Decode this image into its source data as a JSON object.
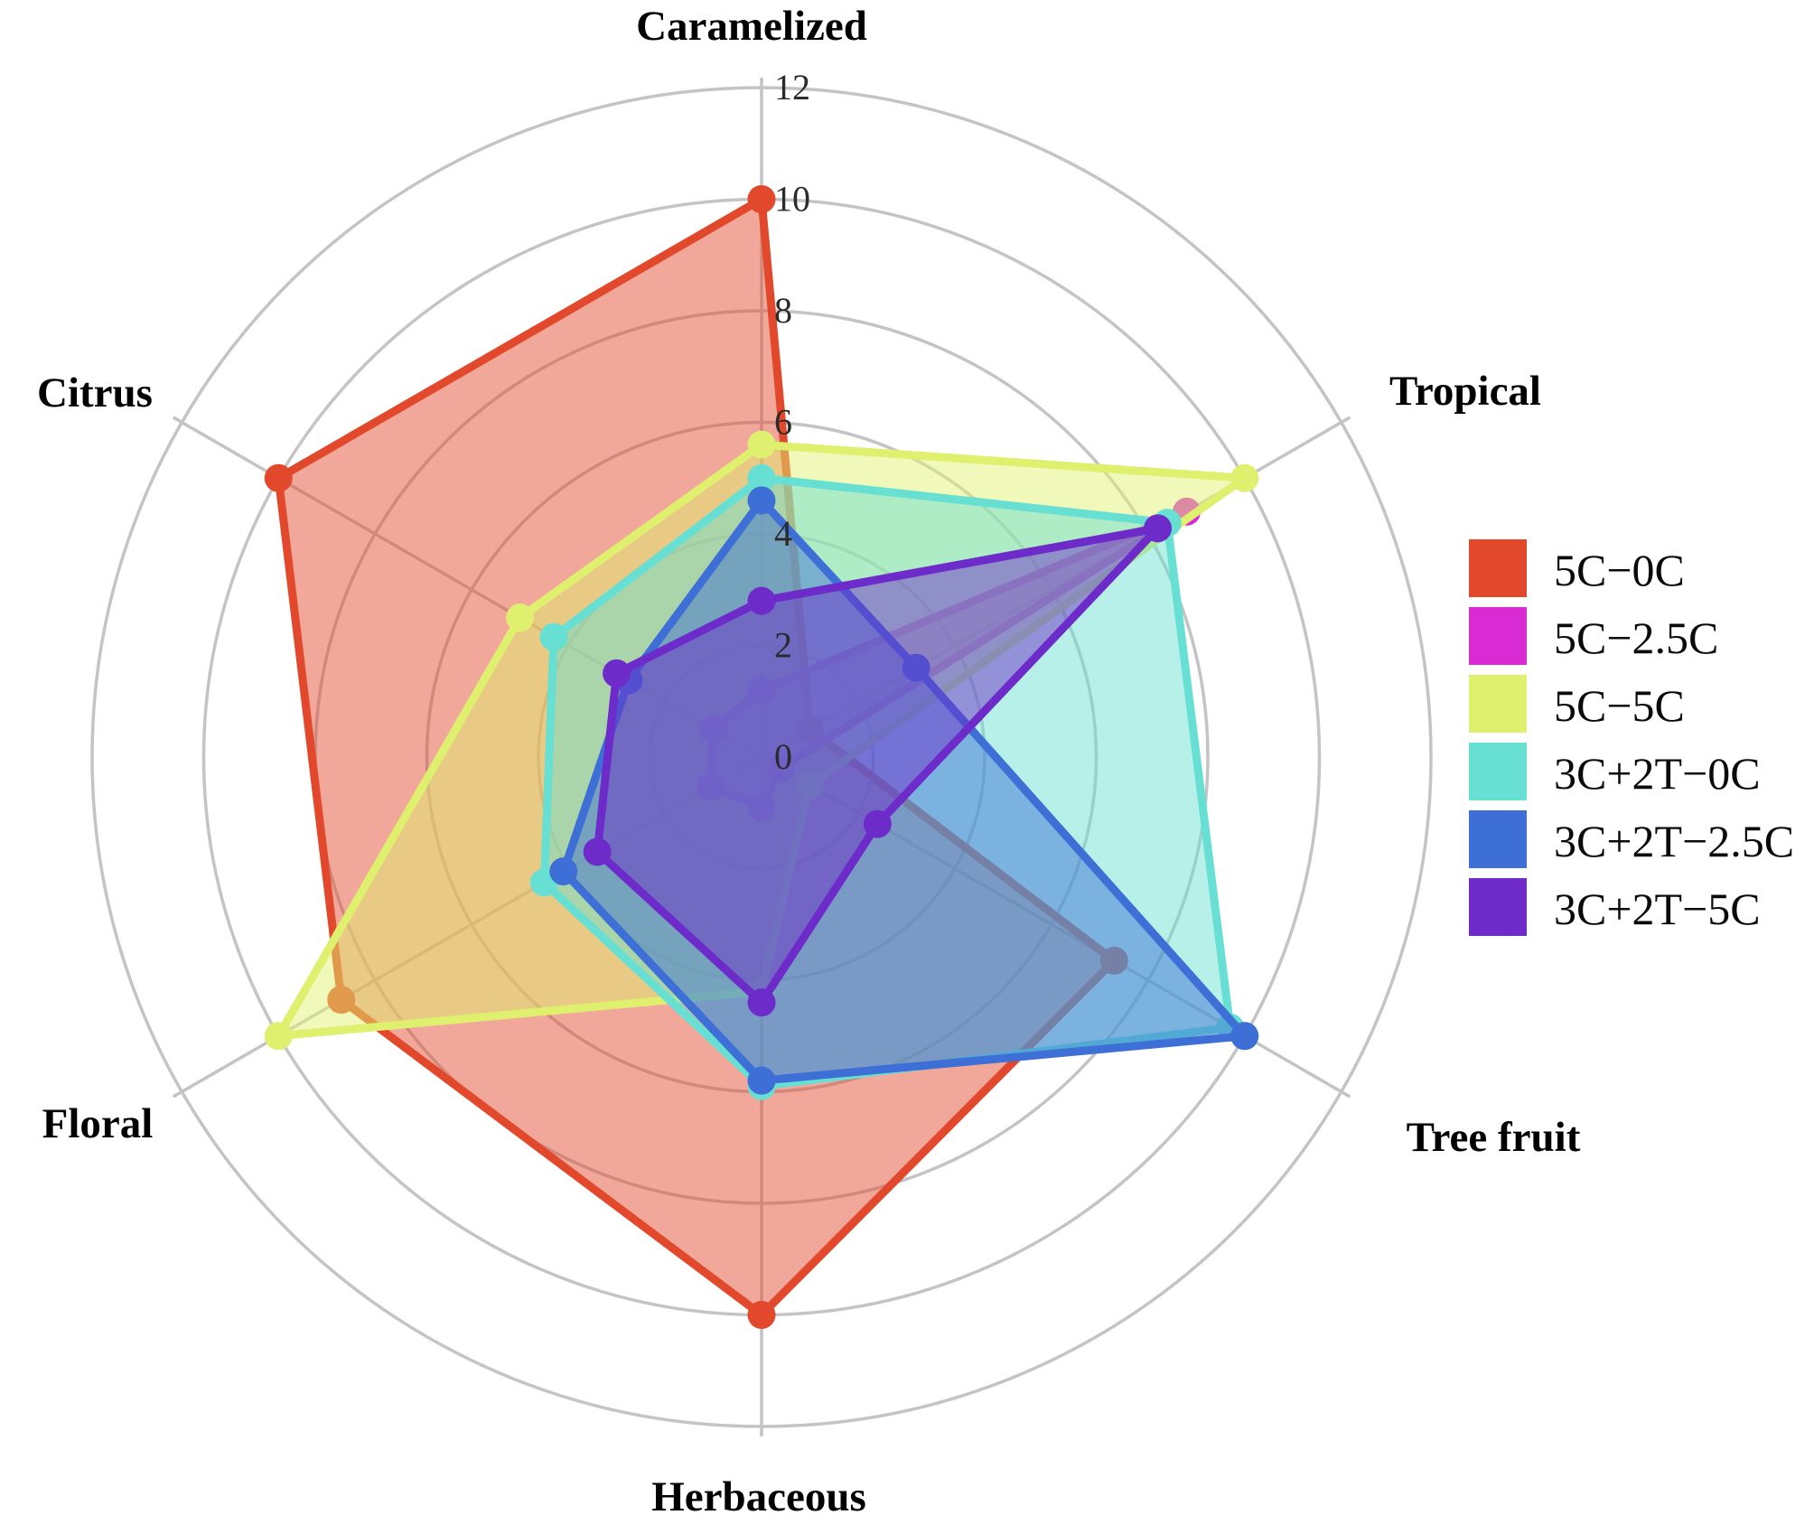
{
  "chart_data": {
    "type": "radar",
    "categories": [
      "Caramelized",
      "Tropical",
      "Tree fruit",
      "Herbaceous",
      "Floral",
      "Citrus"
    ],
    "radial_axis": {
      "min": 0,
      "max": 12,
      "tick_step": 2,
      "tick_labels": [
        "0",
        "2",
        "4",
        "6",
        "8",
        "10",
        "12"
      ],
      "grid": "on",
      "grid_shape": "circular"
    },
    "series": [
      {
        "name": "5C−0C",
        "color": "#e2492c",
        "values": [
          10.0,
          1.0,
          7.3,
          10.0,
          8.7,
          10.0
        ]
      },
      {
        "name": "5C−2.5C",
        "color": "#d92bd3",
        "values": [
          1.2,
          8.8,
          0.4,
          0.9,
          1.05,
          1.0
        ]
      },
      {
        "name": "5C−5C",
        "color": "#dff06e",
        "values": [
          5.6,
          10.0,
          1.0,
          4.2,
          10.0,
          5.0
        ]
      },
      {
        "name": "3C+2T−0C",
        "color": "#67dfd2",
        "values": [
          5.0,
          8.4,
          9.7,
          5.9,
          4.5,
          4.3
        ]
      },
      {
        "name": "3C+2T−2.5C",
        "color": "#3d6fd6",
        "values": [
          4.6,
          3.2,
          10.0,
          5.8,
          4.1,
          2.75
        ]
      },
      {
        "name": "3C+2T−5C",
        "color": "#6d2bc9",
        "values": [
          2.8,
          8.2,
          2.4,
          4.4,
          3.4,
          3.0
        ]
      }
    ],
    "legend": {
      "position": "right",
      "entries": [
        "5C−0C",
        "5C−2.5C",
        "5C−5C",
        "3C+2T−0C",
        "3C+2T−2.5C",
        "3C+2T−5C"
      ]
    },
    "title": "",
    "xlabel": "",
    "ylabel": ""
  },
  "style": {
    "grid_color": "#c4c4c4",
    "axis_label_color": "#000000",
    "tick_label_color": "#2b2b2b",
    "fill_opacity": 0.48,
    "background": "#ffffff"
  }
}
